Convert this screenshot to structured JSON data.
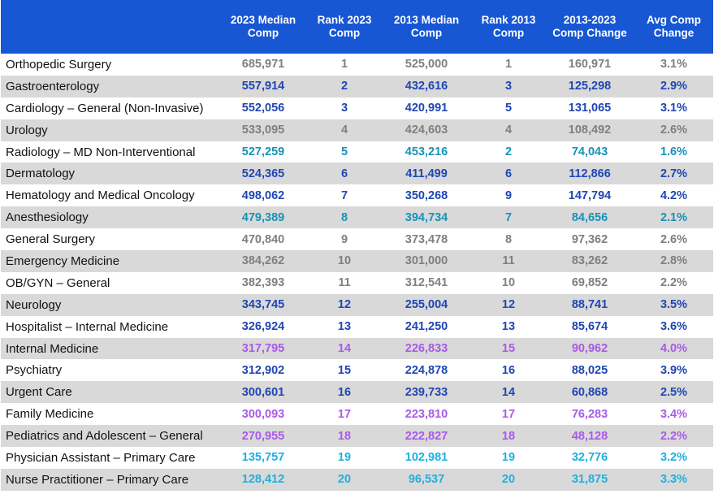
{
  "headers": [
    "",
    "2023 Median\nComp",
    "Rank 2023\nComp",
    "2013 Median\nComp",
    "Rank 2013\nComp",
    "2013-2023\nComp Change",
    "Avg Comp\nChange"
  ],
  "colors": {
    "header_bg": "#1757d3",
    "gray": "#7f7f7f",
    "blue": "#1f46b4",
    "teal": "#1692b8",
    "purple": "#a95ae8",
    "cyan": "#1eb0e0"
  },
  "rows": [
    {
      "specialty": "Orthopedic Surgery",
      "comp2023": "685,971",
      "rank2023": "1",
      "comp2013": "525,000",
      "rank2013": "1",
      "change": "160,971",
      "avg": "3.1%",
      "color": "gray"
    },
    {
      "specialty": "Gastroenterology",
      "comp2023": "557,914",
      "rank2023": "2",
      "comp2013": "432,616",
      "rank2013": "3",
      "change": "125,298",
      "avg": "2.9%",
      "color": "blue"
    },
    {
      "specialty": "Cardiology – General (Non-Invasive)",
      "comp2023": "552,056",
      "rank2023": "3",
      "comp2013": "420,991",
      "rank2013": "5",
      "change": "131,065",
      "avg": "3.1%",
      "color": "blue"
    },
    {
      "specialty": "Urology",
      "comp2023": "533,095",
      "rank2023": "4",
      "comp2013": "424,603",
      "rank2013": "4",
      "change": "108,492",
      "avg": "2.6%",
      "color": "gray"
    },
    {
      "specialty": "Radiology – MD Non-Interventional",
      "comp2023": "527,259",
      "rank2023": "5",
      "comp2013": "453,216",
      "rank2013": "2",
      "change": "74,043",
      "avg": "1.6%",
      "color": "teal"
    },
    {
      "specialty": "Dermatology",
      "comp2023": "524,365",
      "rank2023": "6",
      "comp2013": "411,499",
      "rank2013": "6",
      "change": "112,866",
      "avg": "2.7%",
      "color": "blue"
    },
    {
      "specialty": "Hematology and Medical Oncology",
      "comp2023": "498,062",
      "rank2023": "7",
      "comp2013": "350,268",
      "rank2013": "9",
      "change": "147,794",
      "avg": "4.2%",
      "color": "blue"
    },
    {
      "specialty": "Anesthesiology",
      "comp2023": "479,389",
      "rank2023": "8",
      "comp2013": "394,734",
      "rank2013": "7",
      "change": "84,656",
      "avg": "2.1%",
      "color": "teal"
    },
    {
      "specialty": "General Surgery",
      "comp2023": "470,840",
      "rank2023": "9",
      "comp2013": "373,478",
      "rank2013": "8",
      "change": "97,362",
      "avg": "2.6%",
      "color": "gray"
    },
    {
      "specialty": "Emergency Medicine",
      "comp2023": "384,262",
      "rank2023": "10",
      "comp2013": "301,000",
      "rank2013": "11",
      "change": "83,262",
      "avg": "2.8%",
      "color": "gray"
    },
    {
      "specialty": "OB/GYN – General",
      "comp2023": "382,393",
      "rank2023": "11",
      "comp2013": "312,541",
      "rank2013": "10",
      "change": "69,852",
      "avg": "2.2%",
      "color": "gray"
    },
    {
      "specialty": "Neurology",
      "comp2023": "343,745",
      "rank2023": "12",
      "comp2013": "255,004",
      "rank2013": "12",
      "change": "88,741",
      "avg": "3.5%",
      "color": "blue"
    },
    {
      "specialty": "Hospitalist – Internal Medicine",
      "comp2023": "326,924",
      "rank2023": "13",
      "comp2013": "241,250",
      "rank2013": "13",
      "change": "85,674",
      "avg": "3.6%",
      "color": "blue"
    },
    {
      "specialty": "Internal Medicine",
      "comp2023": "317,795",
      "rank2023": "14",
      "comp2013": "226,833",
      "rank2013": "15",
      "change": "90,962",
      "avg": "4.0%",
      "color": "purple"
    },
    {
      "specialty": "Psychiatry",
      "comp2023": "312,902",
      "rank2023": "15",
      "comp2013": "224,878",
      "rank2013": "16",
      "change": "88,025",
      "avg": "3.9%",
      "color": "blue"
    },
    {
      "specialty": "Urgent Care",
      "comp2023": "300,601",
      "rank2023": "16",
      "comp2013": "239,733",
      "rank2013": "14",
      "change": "60,868",
      "avg": "2.5%",
      "color": "blue"
    },
    {
      "specialty": "Family Medicine",
      "comp2023": "300,093",
      "rank2023": "17",
      "comp2013": "223,810",
      "rank2013": "17",
      "change": "76,283",
      "avg": "3.4%",
      "color": "purple"
    },
    {
      "specialty": "Pediatrics and Adolescent – General",
      "comp2023": "270,955",
      "rank2023": "18",
      "comp2013": "222,827",
      "rank2013": "18",
      "change": "48,128",
      "avg": "2.2%",
      "color": "purple"
    },
    {
      "specialty": "Physician Assistant – Primary Care",
      "comp2023": "135,757",
      "rank2023": "19",
      "comp2013": "102,981",
      "rank2013": "19",
      "change": "32,776",
      "avg": "3.2%",
      "color": "cyan"
    },
    {
      "specialty": "Nurse Practitioner – Primary Care",
      "comp2023": "128,412",
      "rank2023": "20",
      "comp2013": "96,537",
      "rank2013": "20",
      "change": "31,875",
      "avg": "3.3%",
      "color": "cyan"
    }
  ]
}
